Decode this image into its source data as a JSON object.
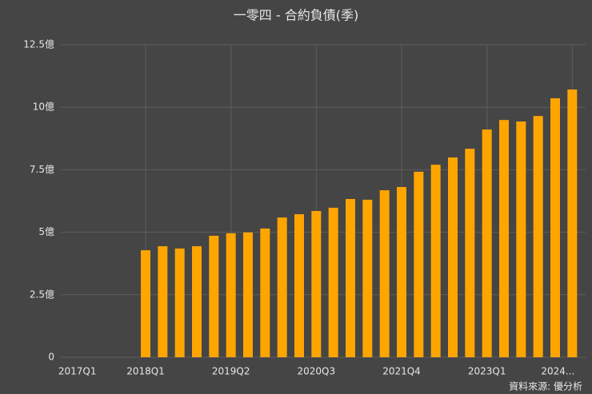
{
  "chart_data": {
    "type": "bar",
    "title": "一零四 - 合約負債(季)",
    "categories": [
      "2017Q1",
      null,
      null,
      null,
      "2018Q1",
      null,
      null,
      null,
      null,
      "2019Q2",
      null,
      null,
      null,
      null,
      "2020Q3",
      null,
      null,
      null,
      null,
      "2021Q4",
      null,
      null,
      null,
      null,
      "2023Q1",
      null,
      null,
      null,
      null,
      "2024..."
    ],
    "values": [
      null,
      null,
      null,
      null,
      4.28,
      4.44,
      4.35,
      4.44,
      4.86,
      4.96,
      4.99,
      5.15,
      5.59,
      5.72,
      5.85,
      5.98,
      6.33,
      6.3,
      6.68,
      6.81,
      7.42,
      7.7,
      7.99,
      8.34,
      9.11,
      9.49,
      9.43,
      9.65,
      10.36,
      10.71
    ],
    "color": "#ffa500",
    "ylim": [
      0,
      12.5
    ],
    "yticks": [
      0,
      {
        "value": 2.5,
        "label": "2.5億"
      },
      {
        "value": 5,
        "label": "5億"
      },
      {
        "value": 7.5,
        "label": "7.5億"
      },
      {
        "value": 10,
        "label": "10億"
      },
      {
        "value": 12.5,
        "label": "12.5億"
      }
    ],
    "grid": true,
    "source": "資料來源: 優分析"
  }
}
